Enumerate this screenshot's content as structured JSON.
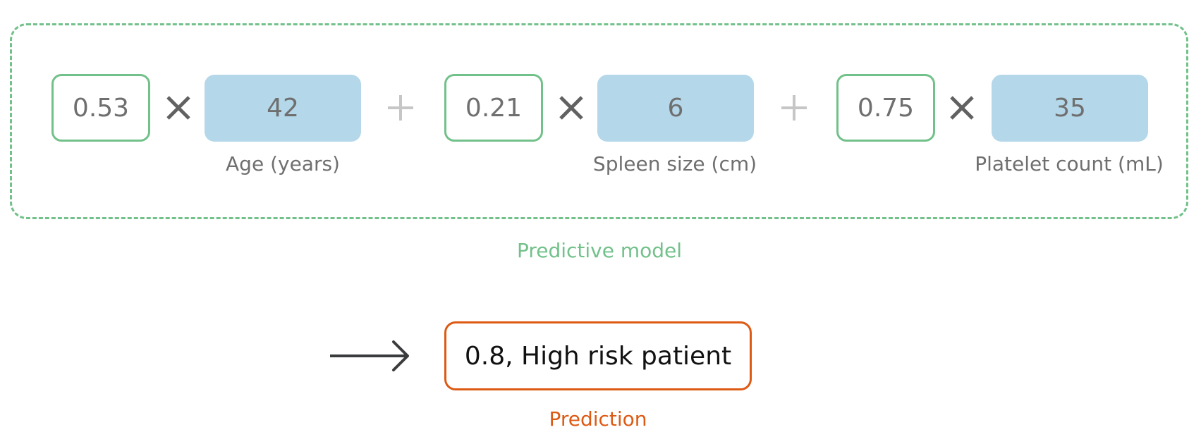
{
  "model": {
    "caption": "Predictive model",
    "terms": [
      {
        "weight": "0.53",
        "value": "42",
        "label": "Age (years)"
      },
      {
        "weight": "0.21",
        "value": "6",
        "label": "Spleen size (cm)"
      },
      {
        "weight": "0.75",
        "value": "35",
        "label": "Platelet count (mL)"
      }
    ]
  },
  "prediction": {
    "result": "0.8, High risk patient",
    "caption": "Prediction"
  },
  "colors": {
    "model_green": "#72c18a",
    "value_blue": "#b4d7ea",
    "prediction_orange": "#dd5a14",
    "text_gray": "#6f6f6f",
    "operator_gray": "#616161",
    "plus_light_gray": "#c6c6c6",
    "arrow_dark": "#3a3b3d"
  },
  "icons": {
    "multiply": "multiply-icon",
    "plus": "plus-icon",
    "arrow": "arrow-right-icon"
  }
}
